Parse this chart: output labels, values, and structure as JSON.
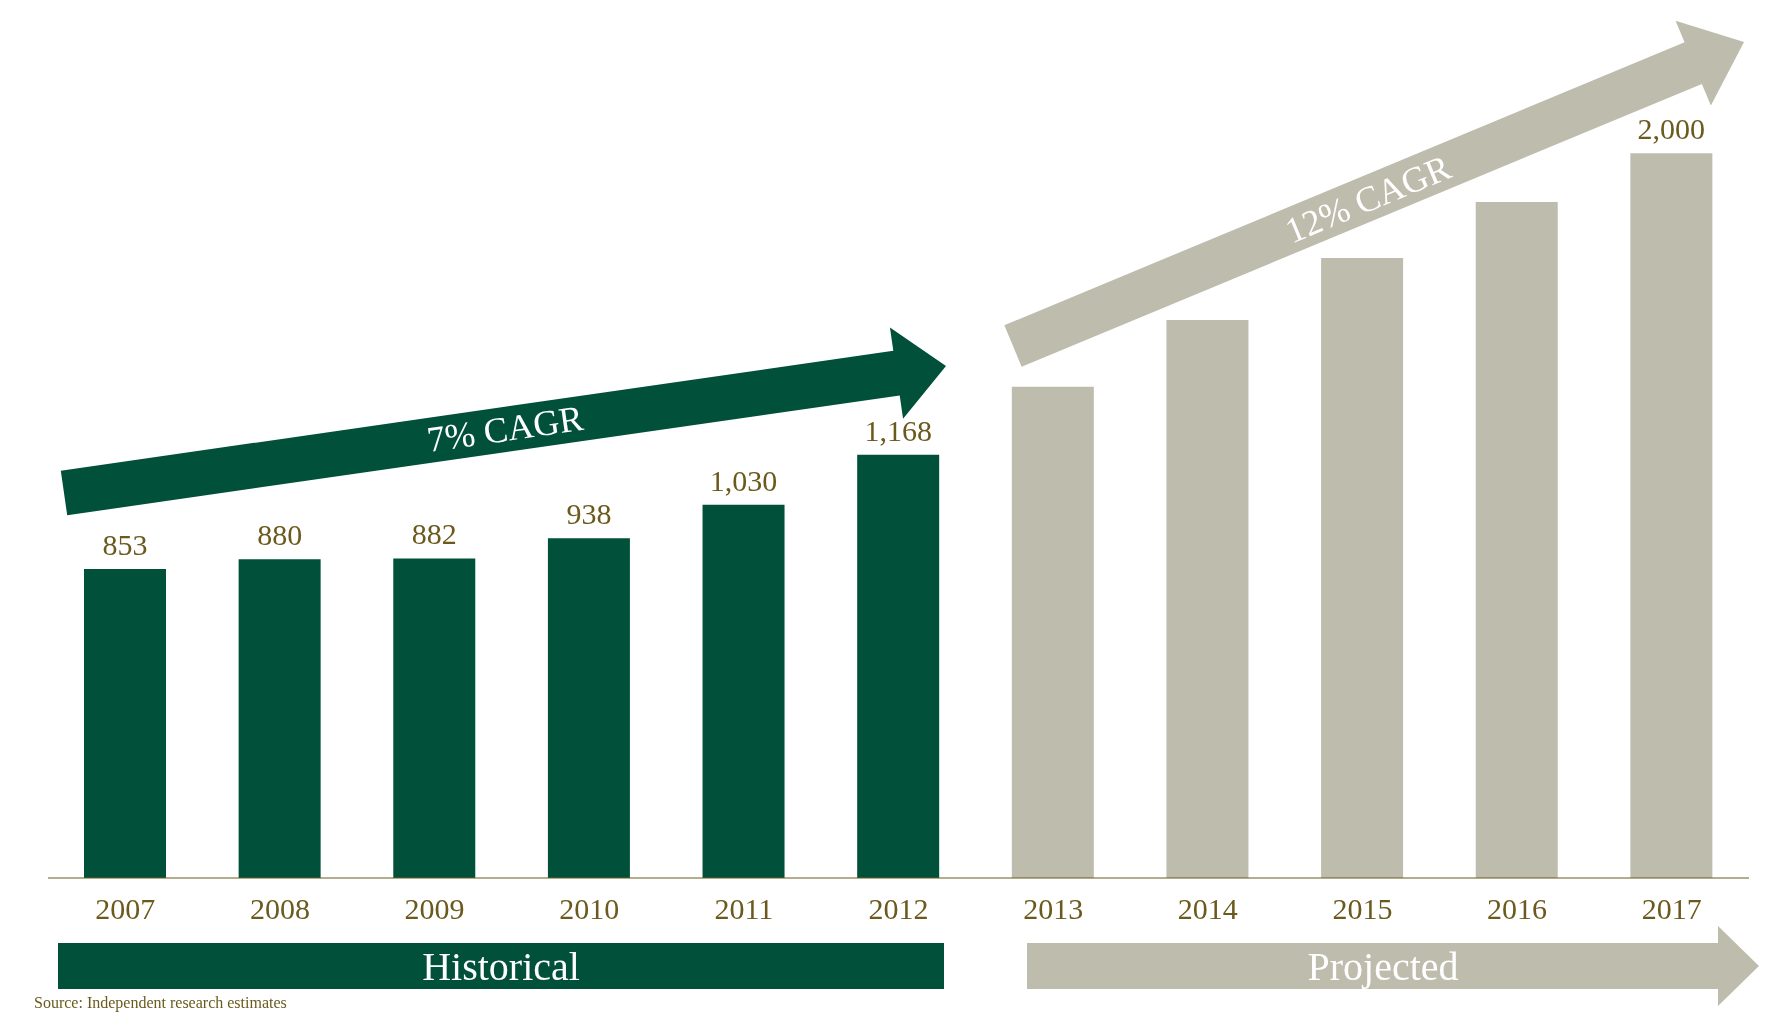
{
  "chart_data": {
    "type": "bar",
    "categories": [
      "2007",
      "2008",
      "2009",
      "2010",
      "2011",
      "2012",
      "2013",
      "2014",
      "2015",
      "2016",
      "2017"
    ],
    "values": [
      853,
      880,
      882,
      938,
      1030,
      1168,
      1356,
      1540,
      1711,
      1866,
      2000
    ],
    "colors": [
      "#00503a",
      "#00503a",
      "#00503a",
      "#00503a",
      "#00503a",
      "#00503a",
      "#bebcad",
      "#bebcad",
      "#bebcad",
      "#bebcad",
      "#bebcad"
    ],
    "value_labels": [
      "853",
      "880",
      "882",
      "938",
      "1,030",
      "1,168",
      null,
      null,
      null,
      null,
      "2,000"
    ],
    "annotations": [
      "7% CAGR",
      "12% CAGR",
      "Historical",
      "Projected",
      "Source: Independent research estimates"
    ],
    "grid": false,
    "legend": false
  }
}
